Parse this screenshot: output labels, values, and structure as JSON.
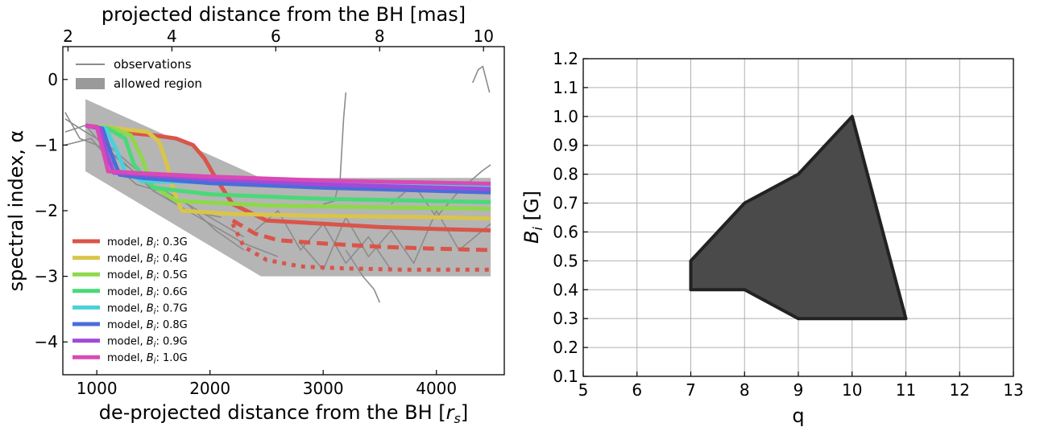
{
  "chart_data": [
    {
      "type": "line",
      "xlabel": "de-projected distance from the BH [r_s]",
      "xlabel_main": "de-projected distance from the BH [",
      "xlabel_sym": "r",
      "xlabel_sub": "s",
      "xlabel_end": "]",
      "x2label": "projected distance from the BH [mas]",
      "ylabel": "spectral index, α",
      "xlim": [
        700,
        4600
      ],
      "ylim": [
        -4.5,
        0.5
      ],
      "xticks": [
        1000,
        2000,
        3000,
        4000
      ],
      "yticks": [
        0,
        -1,
        -2,
        -3,
        -4
      ],
      "yticklabels": [
        "0",
        "−1",
        "−2",
        "−3",
        "−4"
      ],
      "x2lim": [
        1.9,
        10.4
      ],
      "x2ticks": [
        2,
        4,
        6,
        8,
        10
      ],
      "legend_position": "upper-left / lower-left",
      "legend_top": [
        {
          "label": "observations",
          "kind": "line",
          "color": "#8c8c8c"
        },
        {
          "label": "allowed region",
          "kind": "patch",
          "color": "#9a9a9a"
        }
      ],
      "allowed_region": {
        "x": [
          900,
          900,
          2450,
          4480,
          4480,
          2450,
          900
        ],
        "y": [
          -0.3,
          -1.4,
          -3.0,
          -3.0,
          -1.5,
          -1.5,
          -0.3
        ],
        "color": "#b5b5b5"
      },
      "observations": [
        {
          "x": [
            720,
            900,
            1100,
            1300,
            1500,
            1700,
            1900,
            2100,
            2300
          ],
          "y": [
            -0.6,
            -0.8,
            -1.0,
            -1.3,
            -1.6,
            -1.8,
            -2.0,
            -2.2,
            -2.4
          ]
        },
        {
          "x": [
            720,
            900,
            1100,
            1400,
            1700,
            2000,
            2300,
            2600
          ],
          "y": [
            -0.8,
            -0.7,
            -1.1,
            -1.5,
            -1.9,
            -2.2,
            -2.5,
            -2.7
          ]
        },
        {
          "x": [
            720,
            850,
            1000,
            1200,
            1500,
            1800,
            2100
          ],
          "y": [
            -0.5,
            -0.9,
            -1.0,
            -1.2,
            -1.7,
            -2.0,
            -2.1
          ]
        },
        {
          "x": [
            720,
            950,
            1150,
            1350,
            1550,
            1800,
            2050,
            2300
          ],
          "y": [
            -1.0,
            -0.9,
            -1.3,
            -1.6,
            -1.7,
            -1.9,
            -2.3,
            -2.6
          ]
        },
        {
          "x": [
            2400,
            2600,
            2800,
            3000,
            3200,
            3400,
            3600
          ],
          "y": [
            -2.3,
            -2.0,
            -2.6,
            -2.2,
            -2.8,
            -2.4,
            -2.9
          ]
        },
        {
          "x": [
            2800,
            3000,
            3200,
            3400,
            3600,
            3800,
            4000,
            4200,
            4480
          ],
          "y": [
            -2.5,
            -2.9,
            -2.1,
            -2.7,
            -2.3,
            -2.8,
            -2.0,
            -2.6,
            -2.2
          ]
        },
        {
          "x": [
            3000,
            3100,
            3150,
            3180,
            3200
          ],
          "y": [
            -1.9,
            -1.85,
            -1.5,
            -0.6,
            -0.2
          ]
        },
        {
          "x": [
            3200,
            3350,
            3450,
            3500
          ],
          "y": [
            -2.6,
            -3.0,
            -3.2,
            -3.4
          ]
        },
        {
          "x": [
            3600,
            3800,
            4000,
            4200,
            4400,
            4480
          ],
          "y": [
            -1.9,
            -1.6,
            -2.1,
            -1.7,
            -1.4,
            -1.3
          ]
        },
        {
          "x": [
            4320,
            4370,
            4410,
            4440,
            4470
          ],
          "y": [
            -0.05,
            0.15,
            0.2,
            0.0,
            -0.2
          ]
        }
      ],
      "series": [
        {
          "name": "model, B_i: 0.3G",
          "label_main": "model, ",
          "label_sym": "B",
          "label_sub": "i",
          "label_val": ": 0.3G",
          "color": "#d9554a",
          "solid": {
            "x": [
              900,
              1200,
              1500,
              1700,
              1850,
              1950,
              2050,
              2200,
              2500,
              3000,
              3500,
              4000,
              4480
            ],
            "y": [
              -0.7,
              -0.8,
              -0.85,
              -0.9,
              -1.0,
              -1.2,
              -1.5,
              -1.9,
              -2.15,
              -2.2,
              -2.25,
              -2.28,
              -2.3
            ]
          },
          "dashed": {
            "x": [
              2200,
              2400,
              2600,
              3000,
              3500,
              4000,
              4480
            ],
            "y": [
              -2.15,
              -2.35,
              -2.45,
              -2.5,
              -2.55,
              -2.58,
              -2.6
            ]
          },
          "dotted": {
            "x": [
              2200,
              2300,
              2500,
              2800,
              3200,
              3700,
              4200,
              4480
            ],
            "y": [
              -2.2,
              -2.55,
              -2.75,
              -2.85,
              -2.88,
              -2.9,
              -2.9,
              -2.9
            ]
          }
        },
        {
          "name": "model, B_i: 0.4G",
          "label_main": "model, ",
          "label_sym": "B",
          "label_sub": "i",
          "label_val": ": 0.4G",
          "color": "#d9c54a",
          "solid": {
            "x": [
              900,
              1200,
              1450,
              1550,
              1620,
              1680,
              1750,
              2200,
              3000,
              4000,
              4480
            ],
            "y": [
              -0.7,
              -0.75,
              -0.8,
              -0.95,
              -1.3,
              -1.7,
              -2.0,
              -2.05,
              -2.08,
              -2.1,
              -2.12
            ]
          }
        },
        {
          "name": "model, B_i: 0.5G",
          "label_main": "model, ",
          "label_sym": "B",
          "label_sub": "i",
          "label_val": ": 0.5G",
          "color": "#8ed94a",
          "solid": {
            "x": [
              900,
              1150,
              1300,
              1400,
              1480,
              1700,
              2500,
              3500,
              4480
            ],
            "y": [
              -0.7,
              -0.75,
              -0.85,
              -1.2,
              -1.6,
              -1.85,
              -1.92,
              -1.95,
              -1.97
            ]
          }
        },
        {
          "name": "model, B_i: 0.6G",
          "label_main": "model, ",
          "label_sym": "B",
          "label_sub": "i",
          "label_val": ": 0.6G",
          "color": "#4ad978",
          "solid": {
            "x": [
              900,
              1100,
              1250,
              1330,
              1500,
              2000,
              3000,
              4480
            ],
            "y": [
              -0.7,
              -0.75,
              -0.9,
              -1.3,
              -1.65,
              -1.75,
              -1.82,
              -1.87
            ]
          }
        },
        {
          "name": "model, B_i: 0.7G",
          "label_main": "model, ",
          "label_sym": "B",
          "label_sub": "i",
          "label_val": ": 0.7G",
          "color": "#4ad0d9",
          "solid": {
            "x": [
              900,
              1080,
              1180,
              1250,
              1400,
              2000,
              3000,
              4480
            ],
            "y": [
              -0.7,
              -0.75,
              -1.1,
              -1.4,
              -1.55,
              -1.57,
              -1.6,
              -1.62
            ]
          }
        },
        {
          "name": "model, B_i: 0.8G",
          "label_main": "model, ",
          "label_sym": "B",
          "label_sub": "i",
          "label_val": ": 0.8G",
          "color": "#4a6dd9",
          "solid": {
            "x": [
              900,
              1050,
              1120,
              1200,
              1400,
              2000,
              3000,
              4480
            ],
            "y": [
              -0.7,
              -0.75,
              -1.1,
              -1.45,
              -1.5,
              -1.58,
              -1.65,
              -1.72
            ]
          }
        },
        {
          "name": "model, B_i: 0.9G",
          "label_main": "model, ",
          "label_sym": "B",
          "label_sub": "i",
          "label_val": ": 0.9G",
          "color": "#a24ad9",
          "solid": {
            "x": [
              900,
              1030,
              1080,
              1150,
              1400,
              2000,
              3000,
              4480
            ],
            "y": [
              -0.7,
              -0.75,
              -1.1,
              -1.42,
              -1.45,
              -1.52,
              -1.6,
              -1.67
            ]
          }
        },
        {
          "name": "model, B_i: 1.0G",
          "label_main": "model, ",
          "label_sym": "B",
          "label_sub": "i",
          "label_val": ": 1.0G",
          "color": "#d94ab5",
          "solid": {
            "x": [
              900,
              1000,
              1050,
              1100,
              1400,
              2000,
              3000,
              4480
            ],
            "y": [
              -0.7,
              -0.72,
              -1.05,
              -1.4,
              -1.43,
              -1.48,
              -1.54,
              -1.59
            ]
          }
        }
      ]
    },
    {
      "type": "area",
      "xlabel": "q",
      "ylabel": "B_i [G]",
      "ylabel_sym": "B",
      "ylabel_sub": "i",
      "ylabel_unit": " [G]",
      "xlim": [
        5,
        13
      ],
      "ylim": [
        0.1,
        1.2
      ],
      "xticks": [
        5,
        6,
        7,
        8,
        9,
        10,
        11,
        12,
        13
      ],
      "yticks": [
        0.1,
        0.2,
        0.3,
        0.4,
        0.5,
        0.6,
        0.7,
        0.8,
        0.9,
        1.0,
        1.1,
        1.2
      ],
      "grid": true,
      "polygon": {
        "x": [
          7,
          7,
          8,
          9,
          10,
          11,
          9,
          8,
          7
        ],
        "y": [
          0.5,
          0.4,
          0.4,
          0.3,
          0.3,
          0.3,
          0.3,
          0.4,
          0.4
        ],
        "outline_x": [
          7,
          8,
          9,
          10,
          11,
          9,
          8,
          7,
          7
        ],
        "outline_y": [
          0.5,
          0.7,
          0.8,
          1.0,
          0.3,
          0.3,
          0.4,
          0.4,
          0.5
        ],
        "fill": "#4a4a4a",
        "stroke": "#222222"
      }
    }
  ]
}
